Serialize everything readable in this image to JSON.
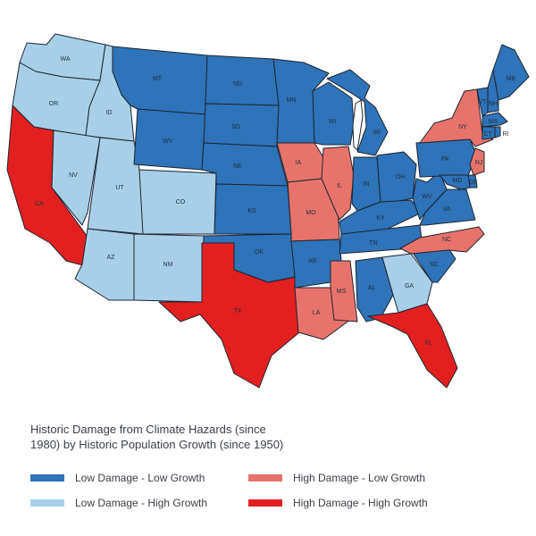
{
  "legend": {
    "title": "Historic Damage from Climate Hazards (since 1980) by Historic Population Growth (since 1950)",
    "items": [
      {
        "key": "LL",
        "label": "Low Damage - Low Growth",
        "color": "#2f73b8"
      },
      {
        "key": "LH",
        "label": "Low Damage - High Growth",
        "color": "#a7d0e8"
      },
      {
        "key": "HL",
        "label": "High Damage - Low Growth",
        "color": "#e8736b"
      },
      {
        "key": "HH",
        "label": "High Damage - High Growth",
        "color": "#e2201f"
      }
    ]
  },
  "states": [
    {
      "abbr": "WA",
      "category": "LH"
    },
    {
      "abbr": "OR",
      "category": "LH"
    },
    {
      "abbr": "CA",
      "category": "HH"
    },
    {
      "abbr": "ID",
      "category": "LH"
    },
    {
      "abbr": "NV",
      "category": "LH"
    },
    {
      "abbr": "UT",
      "category": "LH"
    },
    {
      "abbr": "AZ",
      "category": "LH"
    },
    {
      "abbr": "MT",
      "category": "LL"
    },
    {
      "abbr": "WY",
      "category": "LL"
    },
    {
      "abbr": "CO",
      "category": "LH"
    },
    {
      "abbr": "NM",
      "category": "LH"
    },
    {
      "abbr": "ND",
      "category": "LL"
    },
    {
      "abbr": "SD",
      "category": "LL"
    },
    {
      "abbr": "NE",
      "category": "LL"
    },
    {
      "abbr": "KS",
      "category": "LL"
    },
    {
      "abbr": "OK",
      "category": "LL"
    },
    {
      "abbr": "TX",
      "category": "HH"
    },
    {
      "abbr": "MN",
      "category": "LL"
    },
    {
      "abbr": "IA",
      "category": "HL"
    },
    {
      "abbr": "MO",
      "category": "HL"
    },
    {
      "abbr": "AR",
      "category": "LL"
    },
    {
      "abbr": "LA",
      "category": "HL"
    },
    {
      "abbr": "WI",
      "category": "LL"
    },
    {
      "abbr": "IL",
      "category": "HL"
    },
    {
      "abbr": "MI",
      "category": "LL"
    },
    {
      "abbr": "IN",
      "category": "LL"
    },
    {
      "abbr": "OH",
      "category": "LL"
    },
    {
      "abbr": "KY",
      "category": "LL"
    },
    {
      "abbr": "TN",
      "category": "LL"
    },
    {
      "abbr": "MS",
      "category": "HL"
    },
    {
      "abbr": "AL",
      "category": "LL"
    },
    {
      "abbr": "GA",
      "category": "LH"
    },
    {
      "abbr": "FL",
      "category": "HH"
    },
    {
      "abbr": "SC",
      "category": "LL"
    },
    {
      "abbr": "NC",
      "category": "HL"
    },
    {
      "abbr": "VA",
      "category": "LL"
    },
    {
      "abbr": "WV",
      "category": "LL"
    },
    {
      "abbr": "PA",
      "category": "LL"
    },
    {
      "abbr": "NY",
      "category": "HL"
    },
    {
      "abbr": "VT",
      "category": "LL"
    },
    {
      "abbr": "NH",
      "category": "LL"
    },
    {
      "abbr": "ME",
      "category": "LL"
    },
    {
      "abbr": "MA",
      "category": "LL"
    },
    {
      "abbr": "CT",
      "category": "LL"
    },
    {
      "abbr": "RI",
      "category": "LL"
    },
    {
      "abbr": "NJ",
      "category": "HL"
    },
    {
      "abbr": "DE",
      "category": "LL"
    },
    {
      "abbr": "MD",
      "category": "LL"
    }
  ]
}
